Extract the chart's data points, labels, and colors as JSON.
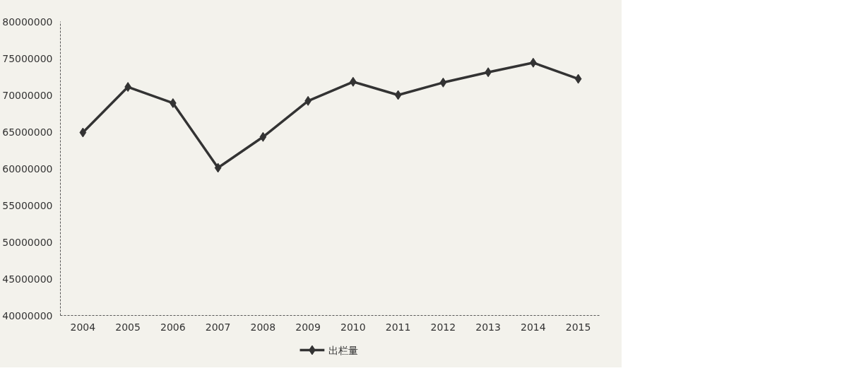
{
  "chart_data": {
    "type": "line",
    "categories": [
      "2004",
      "2005",
      "2006",
      "2007",
      "2008",
      "2009",
      "2010",
      "2011",
      "2012",
      "2013",
      "2014",
      "2015"
    ],
    "series": [
      {
        "name": "出栏量",
        "color": "#333333",
        "values": [
          64900000,
          71100000,
          68900000,
          60100000,
          64300000,
          69200000,
          71800000,
          70000000,
          71700000,
          73100000,
          74400000,
          72200000
        ]
      }
    ],
    "ylim": [
      40000000,
      80000000
    ],
    "yticks": [
      40000000,
      45000000,
      50000000,
      55000000,
      60000000,
      65000000,
      70000000,
      75000000,
      80000000
    ],
    "marker": "diamond",
    "line_style": "solid",
    "legend": "bottom",
    "grid": false
  }
}
